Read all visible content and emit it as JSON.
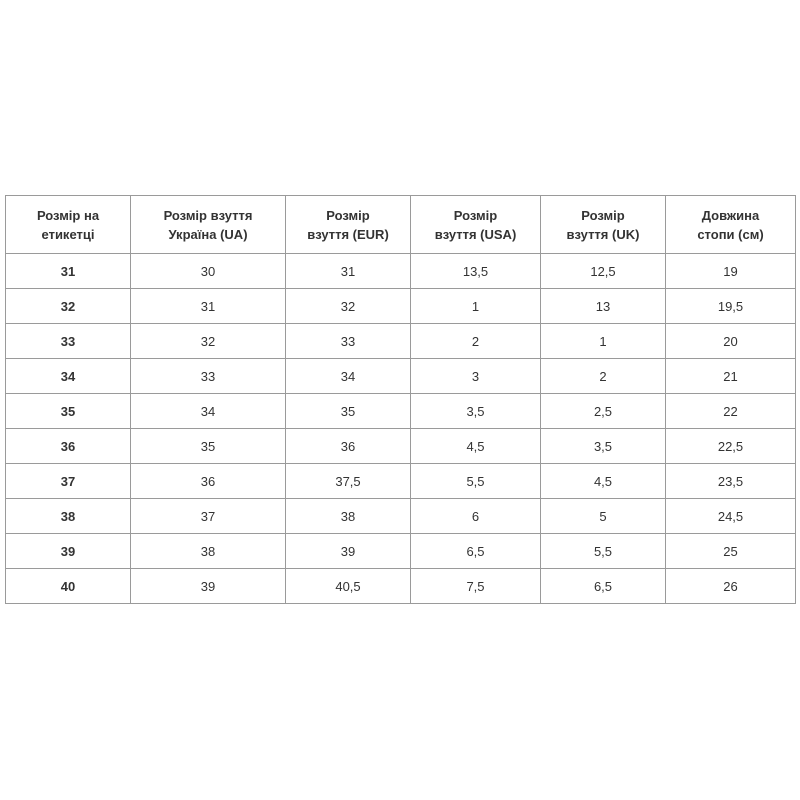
{
  "table": {
    "header": [
      [
        "Розмір на",
        "етикетці"
      ],
      [
        "Розмір взуття",
        "Україна (UA)"
      ],
      [
        "Розмір",
        "взуття (EUR)"
      ],
      [
        "Розмір",
        "взуття (USA)"
      ],
      [
        "Розмір",
        "взуття (UK)"
      ],
      [
        "Довжина",
        "стопи (см)"
      ]
    ],
    "rows": [
      [
        "31",
        "30",
        "31",
        "13,5",
        "12,5",
        "19"
      ],
      [
        "32",
        "31",
        "32",
        "1",
        "13",
        "19,5"
      ],
      [
        "33",
        "32",
        "33",
        "2",
        "1",
        "20"
      ],
      [
        "34",
        "33",
        "34",
        "3",
        "2",
        "21"
      ],
      [
        "35",
        "34",
        "35",
        "3,5",
        "2,5",
        "22"
      ],
      [
        "36",
        "35",
        "36",
        "4,5",
        "3,5",
        "22,5"
      ],
      [
        "37",
        "36",
        "37,5",
        "5,5",
        "4,5",
        "23,5"
      ],
      [
        "38",
        "37",
        "38",
        "6",
        "5",
        "24,5"
      ],
      [
        "39",
        "38",
        "39",
        "6,5",
        "5,5",
        "25"
      ],
      [
        "40",
        "39",
        "40,5",
        "7,5",
        "6,5",
        "26"
      ]
    ]
  }
}
